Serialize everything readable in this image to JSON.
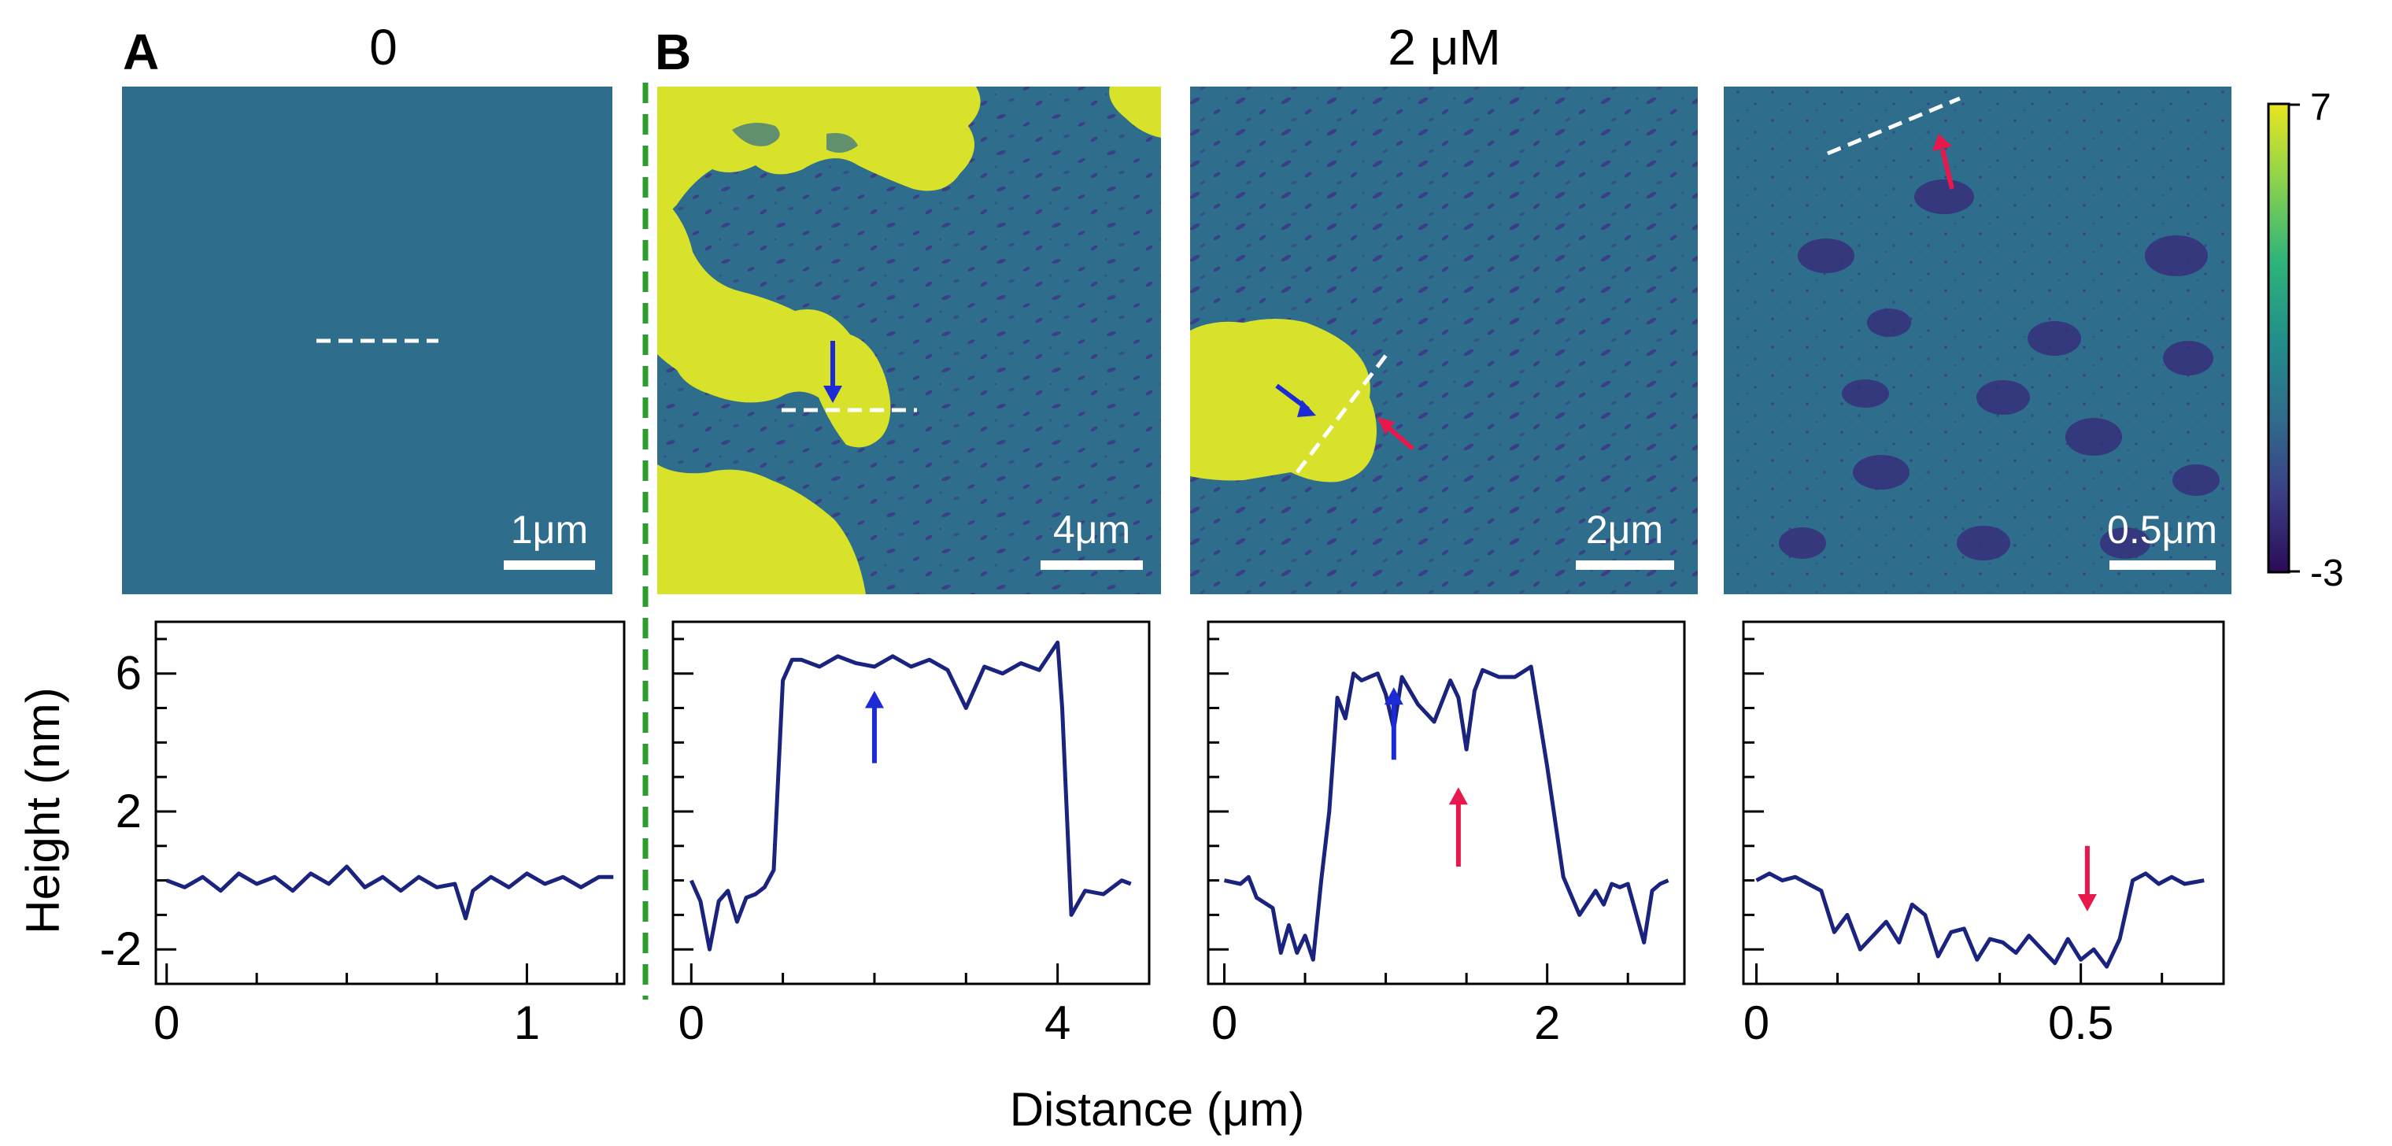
{
  "panel_labels": {
    "a": "A",
    "b": "B"
  },
  "conditions": {
    "a": "0",
    "b": "2 μM"
  },
  "colorbar": {
    "max_label": "7",
    "min_label": "-3",
    "range": [
      -3,
      7
    ],
    "colors": [
      "#2b0b57",
      "#3b3f86",
      "#2f6d8c",
      "#228f8a",
      "#2fb47a",
      "#8ad24d",
      "#e9e51f"
    ]
  },
  "images": [
    {
      "scale_bar": "1μm"
    },
    {
      "scale_bar": "4μm"
    },
    {
      "scale_bar": "2μm"
    },
    {
      "scale_bar": "0.5μm"
    }
  ],
  "colors": {
    "profile": "#1a237e",
    "blue_arrow": "#1c2bd6",
    "red_arrow": "#e8174c",
    "divider": "#2a9d2a"
  },
  "y_axis_label": "Height (nm)",
  "x_axis_label": "Distance (μm)",
  "chart_data": [
    {
      "type": "line",
      "xlim": [
        -0.03,
        1.27
      ],
      "ylim": [
        -3,
        7.5
      ],
      "x_ticks": [
        0,
        1
      ],
      "x_tick_labels": [
        "0",
        "1"
      ],
      "y_ticks": [
        6,
        2,
        -2
      ],
      "y_tick_labels": [
        "6",
        "2",
        "-2"
      ],
      "x": [
        0,
        0.05,
        0.1,
        0.15,
        0.2,
        0.25,
        0.3,
        0.35,
        0.4,
        0.45,
        0.5,
        0.55,
        0.6,
        0.65,
        0.7,
        0.75,
        0.8,
        0.83,
        0.85,
        0.9,
        0.95,
        1.0,
        1.05,
        1.1,
        1.15,
        1.2,
        1.24
      ],
      "y": [
        0,
        -0.2,
        0.1,
        -0.3,
        0.2,
        -0.1,
        0.1,
        -0.3,
        0.2,
        -0.1,
        0.4,
        -0.2,
        0.1,
        -0.3,
        0.1,
        -0.2,
        -0.1,
        -1.1,
        -0.3,
        0.1,
        -0.2,
        0.2,
        -0.1,
        0.1,
        -0.2,
        0.1,
        0.1
      ],
      "arrows": []
    },
    {
      "type": "line",
      "xlim": [
        -0.2,
        5.0
      ],
      "ylim": [
        -3,
        7.5
      ],
      "x_ticks": [
        0,
        4
      ],
      "x_tick_labels": [
        "0",
        "4"
      ],
      "y_ticks": [
        6,
        2,
        -2
      ],
      "y_tick_labels": [
        "6",
        "2",
        "-2"
      ],
      "x": [
        0,
        0.1,
        0.2,
        0.3,
        0.4,
        0.5,
        0.6,
        0.7,
        0.8,
        0.9,
        1.0,
        1.1,
        1.2,
        1.4,
        1.6,
        1.8,
        2.0,
        2.2,
        2.4,
        2.6,
        2.8,
        3.0,
        3.2,
        3.4,
        3.6,
        3.8,
        4.0,
        4.05,
        4.15,
        4.3,
        4.5,
        4.7,
        4.8
      ],
      "y": [
        0,
        -0.6,
        -2.0,
        -0.6,
        -0.3,
        -1.2,
        -0.5,
        -0.4,
        -0.2,
        0.3,
        5.8,
        6.4,
        6.4,
        6.2,
        6.5,
        6.3,
        6.2,
        6.5,
        6.2,
        6.4,
        6.1,
        5.0,
        6.2,
        6.0,
        6.3,
        6.1,
        6.9,
        5.0,
        -1.0,
        -0.3,
        -0.4,
        0.0,
        -0.1
      ],
      "arrows": [
        {
          "x": 2.0,
          "y_tail": 3.4,
          "y_head": 5.5,
          "color": "blue"
        }
      ]
    },
    {
      "type": "line",
      "xlim": [
        -0.1,
        2.85
      ],
      "ylim": [
        -3,
        7.5
      ],
      "x_ticks": [
        0,
        2
      ],
      "x_tick_labels": [
        "0",
        "2"
      ],
      "y_ticks": [
        6,
        2,
        -2
      ],
      "y_tick_labels": [
        "6",
        "2",
        "-2"
      ],
      "x": [
        0,
        0.1,
        0.15,
        0.2,
        0.3,
        0.35,
        0.4,
        0.45,
        0.5,
        0.55,
        0.6,
        0.65,
        0.7,
        0.75,
        0.8,
        0.85,
        0.9,
        0.95,
        1.0,
        1.05,
        1.1,
        1.2,
        1.3,
        1.4,
        1.45,
        1.5,
        1.55,
        1.6,
        1.7,
        1.75,
        1.8,
        1.9,
        2.0,
        2.1,
        2.2,
        2.3,
        2.35,
        2.4,
        2.45,
        2.5,
        2.6,
        2.65,
        2.7,
        2.75
      ],
      "y": [
        0,
        -0.1,
        0.1,
        -0.5,
        -0.8,
        -2.1,
        -1.3,
        -2.1,
        -1.6,
        -2.3,
        0.0,
        2.0,
        5.3,
        4.7,
        6.0,
        5.8,
        5.9,
        6.0,
        5.4,
        4.4,
        5.9,
        5.1,
        4.6,
        5.8,
        5.3,
        3.8,
        5.5,
        6.1,
        5.9,
        5.9,
        5.9,
        6.2,
        3.3,
        0.1,
        -1.0,
        -0.3,
        -0.7,
        -0.1,
        -0.2,
        -0.1,
        -1.8,
        -0.3,
        -0.1,
        0.0
      ],
      "arrows": [
        {
          "x": 1.05,
          "y_tail": 3.5,
          "y_head": 5.6,
          "color": "blue"
        },
        {
          "x": 1.45,
          "y_tail": 0.4,
          "y_head": 2.7,
          "color": "red"
        }
      ]
    },
    {
      "type": "line",
      "xlim": [
        -0.02,
        0.72
      ],
      "ylim": [
        -3,
        7.5
      ],
      "x_ticks": [
        0,
        0.5
      ],
      "x_tick_labels": [
        "0",
        "0.5"
      ],
      "y_ticks": [
        6,
        2,
        -2
      ],
      "y_tick_labels": [
        "6",
        "2",
        "-2"
      ],
      "x": [
        0,
        0.02,
        0.04,
        0.06,
        0.08,
        0.1,
        0.12,
        0.14,
        0.16,
        0.18,
        0.2,
        0.22,
        0.24,
        0.26,
        0.28,
        0.3,
        0.32,
        0.34,
        0.36,
        0.38,
        0.4,
        0.42,
        0.44,
        0.46,
        0.48,
        0.5,
        0.52,
        0.54,
        0.56,
        0.58,
        0.6,
        0.62,
        0.64,
        0.66,
        0.69
      ],
      "y": [
        0,
        0.2,
        0.0,
        0.1,
        -0.1,
        -0.3,
        -1.5,
        -1.0,
        -2.0,
        -1.6,
        -1.2,
        -1.8,
        -0.7,
        -1.0,
        -2.2,
        -1.5,
        -1.4,
        -2.3,
        -1.7,
        -1.8,
        -2.1,
        -1.6,
        -2.0,
        -2.4,
        -1.7,
        -2.3,
        -2.0,
        -2.5,
        -1.7,
        0.0,
        0.2,
        -0.1,
        0.1,
        -0.1,
        0.0
      ],
      "arrows": [
        {
          "x": 0.51,
          "y_tail": 1.0,
          "y_head": -0.9,
          "color": "red"
        }
      ]
    }
  ]
}
